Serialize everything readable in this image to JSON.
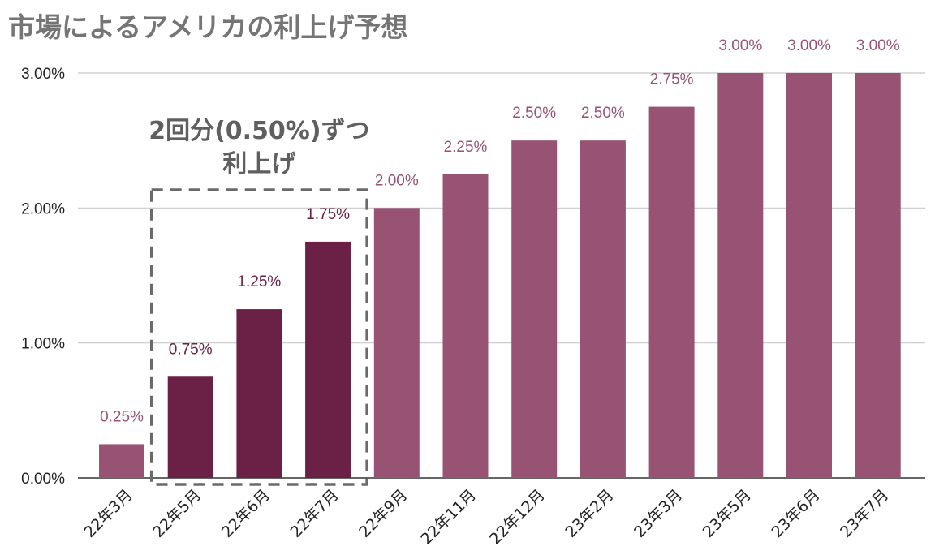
{
  "chart_data": {
    "type": "bar",
    "title": "市場によるアメリカの利上げ予想",
    "categories": [
      "22年3月",
      "22年5月",
      "22年6月",
      "22年7月",
      "22年9月",
      "22年11月",
      "22年12月",
      "23年2月",
      "23年3月",
      "23年5月",
      "23年6月",
      "23年7月"
    ],
    "values": [
      0.25,
      0.75,
      1.25,
      1.75,
      2.0,
      2.25,
      2.5,
      2.5,
      2.75,
      3.0,
      3.0,
      3.0
    ],
    "data_labels": [
      "0.25%",
      "0.75%",
      "1.25%",
      "1.75%",
      "2.00%",
      "2.25%",
      "2.50%",
      "2.50%",
      "2.75%",
      "3.00%",
      "3.00%",
      "3.00%"
    ],
    "highlighted": [
      false,
      true,
      true,
      true,
      false,
      false,
      false,
      false,
      false,
      false,
      false,
      false
    ],
    "y_ticks": [
      0,
      1,
      2,
      3
    ],
    "y_tick_labels": [
      "0.00%",
      "1.00%",
      "2.00%",
      "3.00%"
    ],
    "ylim": [
      0,
      3.0
    ],
    "grid": true,
    "xlabel": "",
    "ylabel": "",
    "annotation": {
      "lines": [
        "2回分(0.50%)ずつ",
        "利上げ"
      ],
      "covers_categories": [
        "22年5月",
        "22年6月",
        "22年7月"
      ]
    },
    "colors": {
      "bar": "#985374",
      "bar_highlight": "#6b2146",
      "label": "#985374",
      "label_highlight": "#6b2146"
    }
  }
}
